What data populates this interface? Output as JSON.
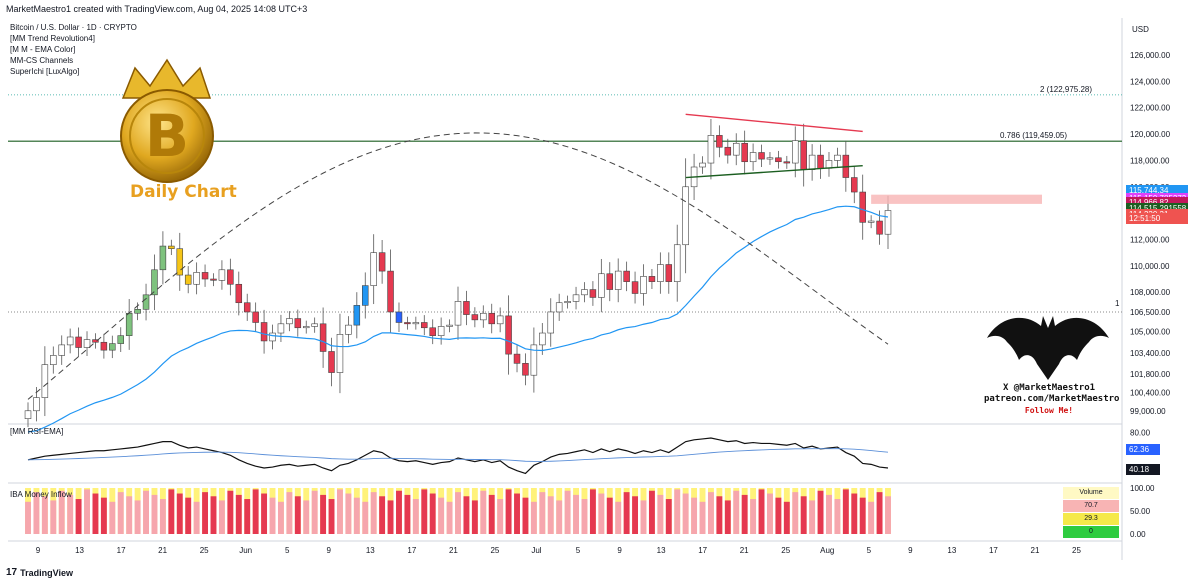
{
  "header": {
    "title": "MarketMaestro1 created with TradingView.com, Aug 04, 2025 14:08 UTC+3"
  },
  "symbol_line": "Bitcoin / U.S. Dollar · 1D · CRYPTO",
  "indicators": [
    "[MM Trend Revolution4]",
    "[M M - EMA Color]",
    "MM-CS Channels",
    "SuperIchi [LuxAlgo]"
  ],
  "currency": "USD",
  "logo_text": "Daily Chart",
  "social": {
    "line1": "X @MarketMaestro1",
    "line2": "patreon.com/MarketMaestro",
    "line3": "Follow Me!"
  },
  "rsi_label": "[MM RSI-EMA]",
  "mfi_label": "IBA Money Inflow",
  "footer": {
    "brand": "TradingView"
  },
  "fib_labels": [
    {
      "text": "2 (122,975.28)",
      "price": 122975
    },
    {
      "text": "0.786 (119,459.05)",
      "price": 119459
    }
  ],
  "level_label": "1",
  "price_tags": [
    {
      "text": "115,744.34",
      "price": 115744,
      "color": "#2196f3"
    },
    {
      "text": "115,150.785273",
      "price": 115150,
      "color": "#e040fb"
    },
    {
      "text": "114,966.82",
      "price": 114850,
      "color": "#c2185b"
    },
    {
      "text": "114,515.291558",
      "price": 114400,
      "color": "#1b5e20"
    },
    {
      "text": "114,330.31",
      "price": 113950,
      "color": "#ef5350"
    },
    {
      "text": "12:51:50",
      "price": 113600,
      "color": "#ef5350"
    }
  ],
  "rsi_tags": [
    {
      "text": "62.36",
      "value": 62.36,
      "color": "#2962ff"
    },
    {
      "text": "40.18",
      "value": 40.18,
      "color": "#131722"
    }
  ],
  "volume_panel": {
    "title": "Volume",
    "values": [
      "70.7",
      "29.3",
      "0"
    ],
    "colors": [
      "#f8b4b4",
      "#f5e94a",
      "#2ecc40"
    ]
  },
  "chart_data": {
    "type": "candlestick",
    "title": "Bitcoin / U.S. Dollar · 1D · CRYPTO",
    "y_axis": {
      "ticks": [
        126000,
        124000,
        122000,
        120000,
        118000,
        116000,
        114000,
        112000,
        110000,
        108000,
        106500,
        105000,
        103400,
        101800,
        100400,
        99000
      ],
      "tick_labels": [
        "126,000.00",
        "124,000.00",
        "122,000.00",
        "120,000.00",
        "118,000.00",
        "116,000.00",
        "114,000.00",
        "112,000.00",
        "110,000.00",
        "108,000.00",
        "106,500.00",
        "105,000.00",
        "103,400.00",
        "101,800.00",
        "100,400.00",
        "99,000.00"
      ]
    },
    "x_axis": {
      "tick_labels": [
        "9",
        "13",
        "17",
        "21",
        "25",
        "Jun",
        "5",
        "9",
        "13",
        "17",
        "21",
        "25",
        "Jul",
        "5",
        "9",
        "13",
        "17",
        "21",
        "25",
        "Aug",
        "5",
        "9",
        "13",
        "17",
        "21",
        "25"
      ]
    },
    "closes": [
      99000,
      100000,
      102500,
      103200,
      104000,
      104600,
      103800,
      104400,
      104200,
      103600,
      104100,
      104700,
      106400,
      106700,
      107800,
      109700,
      111500,
      111300,
      109300,
      108600,
      109500,
      109000,
      108900,
      109700,
      108600,
      107200,
      106500,
      105700,
      104300,
      104900,
      105600,
      106000,
      105300,
      105400,
      105600,
      103500,
      101900,
      104800,
      105500,
      107000,
      108500,
      111000,
      109600,
      106500,
      105700,
      105600,
      105700,
      105300,
      104700,
      105400,
      105500,
      107300,
      106300,
      105900,
      106400,
      105600,
      106200,
      103300,
      102600,
      101700,
      104000,
      104900,
      106500,
      107200,
      107300,
      107800,
      108200,
      107600,
      109400,
      108200,
      109600,
      108800,
      107900,
      109200,
      108800,
      110100,
      108800,
      111600,
      116000,
      117500,
      117800,
      119900,
      119000,
      118400,
      119300,
      117900,
      118600,
      118100,
      118200,
      117900,
      117800,
      119500,
      117300,
      118400,
      117400,
      118000,
      118400,
      116700,
      115600,
      113300,
      113400,
      112400,
      114200
    ],
    "rsi": [
      50,
      52,
      54,
      55,
      56,
      57,
      58,
      59,
      60,
      60,
      61,
      62,
      63,
      64,
      66,
      68,
      70,
      70,
      66,
      63,
      64,
      62,
      60,
      58,
      55,
      50,
      46,
      43,
      41,
      42,
      44,
      45,
      43,
      44,
      45,
      41,
      38,
      44,
      46,
      50,
      55,
      60,
      58,
      52,
      49,
      48,
      49,
      47,
      45,
      47,
      48,
      52,
      50,
      48,
      50,
      47,
      49,
      42,
      38,
      35,
      44,
      48,
      53,
      56,
      57,
      59,
      61,
      58,
      62,
      59,
      62,
      60,
      57,
      60,
      58,
      61,
      58,
      64,
      70,
      72,
      73,
      74,
      72,
      70,
      71,
      68,
      69,
      68,
      68,
      67,
      66,
      68,
      63,
      65,
      62,
      63,
      64,
      58,
      54,
      46,
      45,
      42,
      41
    ],
    "rsi_ticks": [
      80,
      40
    ],
    "mfi_ticks": [
      "100.00",
      "50.00",
      "0.00"
    ]
  }
}
